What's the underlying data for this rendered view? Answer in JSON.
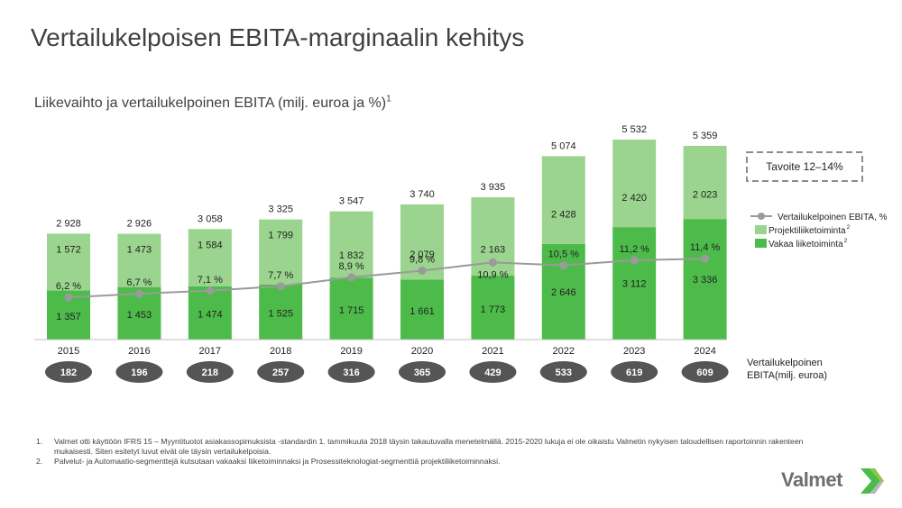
{
  "page": {
    "title": "Vertailukelpoisen EBITA-marginaalin kehitys"
  },
  "chart_data": {
    "type": "bar",
    "title": "Liikevaihto ja vertailukelpoinen EBITA (milj. euroa ja %)",
    "title_sup": "1",
    "categories": [
      "2015",
      "2016",
      "2017",
      "2018",
      "2019",
      "2020",
      "2021",
      "2022",
      "2023",
      "2024"
    ],
    "totals": [
      "2 928",
      "2 926",
      "3 058",
      "3 325",
      "3 547",
      "3 740",
      "3 935",
      "5 074",
      "5 532",
      "5 359"
    ],
    "series": [
      {
        "name": "Vakaa liiketoiminta",
        "name_sup": "2",
        "color": "#4dbb4a",
        "values": [
          1357,
          1453,
          1474,
          1525,
          1715,
          1661,
          1773,
          2646,
          3112,
          3336
        ],
        "labels": [
          "1 357",
          "1 453",
          "1 474",
          "1 525",
          "1 715",
          "1 661",
          "1 773",
          "2 646",
          "3 112",
          "3 336"
        ]
      },
      {
        "name": "Projektiliiketoiminta",
        "name_sup": "2",
        "color": "#9bd48e",
        "values": [
          1572,
          1473,
          1584,
          1799,
          1832,
          2079,
          2163,
          2428,
          2420,
          2023
        ],
        "labels": [
          "1 572",
          "1 473",
          "1 584",
          "1 799",
          "1 832",
          "2 079",
          "2 163",
          "2 428",
          "2 420",
          "2 023"
        ]
      },
      {
        "name": "Vertailukelpoinen EBITA, %",
        "type": "line",
        "color": "#9a9a9a",
        "values": [
          6.2,
          6.7,
          7.1,
          7.7,
          8.9,
          9.8,
          10.9,
          10.5,
          11.2,
          11.4
        ],
        "labels": [
          "6,2 %",
          "6,7 %",
          "7,1 %",
          "7,7 %",
          "8,9 %",
          "9,8 %",
          "10,9 %",
          "10,5 %",
          "11,2 %",
          "11,4 %"
        ]
      }
    ],
    "ebita": {
      "label_line1": "Vertailukelpoinen",
      "label_line2": "EBITA(milj. euroa)",
      "values": [
        "182",
        "196",
        "218",
        "257",
        "316",
        "365",
        "429",
        "533",
        "619",
        "609"
      ]
    },
    "target_label": "Tavoite 12–14%",
    "legend_position": "right",
    "grid": false
  },
  "footnotes": [
    {
      "num": "1.",
      "text": "Valmet otti käyttöön IFRS 15 – Myyntituotot asiakassopimuksista -standardin 1. tammikuuta 2018 täysin takautuvalla menetelmällä. 2015-2020 lukuja ei ole oikaistu Valmetin nykyisen taloudellisen raportoinnin rakenteen mukaisesti. Siten esitetyt luvut eivät ole täysin vertailukelpoisia."
    },
    {
      "num": "2.",
      "text": "Palvelut- ja Automaatio-segmenttejä kutsutaan vakaaksi liiketoiminnaksi ja Prosessiteknologiat-segmenttiä projektiliiketoiminnaksi."
    }
  ],
  "logo": {
    "text": "Valmet",
    "colors": [
      "#4dbb4a",
      "#8dc63f",
      "#b5b5b5"
    ]
  }
}
